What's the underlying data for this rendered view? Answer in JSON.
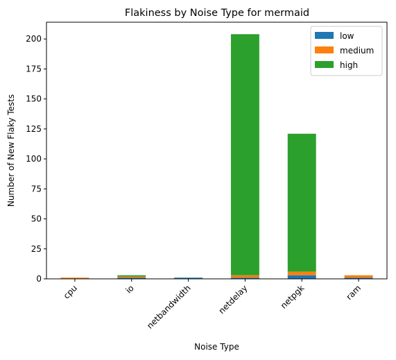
{
  "chart_data": {
    "type": "bar",
    "stacked": true,
    "title": "Flakiness by Noise Type for mermaid",
    "xlabel": "Noise Type",
    "ylabel": "Number of New Flaky Tests",
    "categories": [
      "cpu",
      "io",
      "netbandwidth",
      "netdelay",
      "netpgk",
      "ram"
    ],
    "series": [
      {
        "name": "low",
        "color": "#1f77b4",
        "values": [
          0,
          1,
          1,
          1,
          3,
          1
        ]
      },
      {
        "name": "medium",
        "color": "#ff7f0e",
        "values": [
          1,
          1,
          0,
          2,
          3,
          2
        ]
      },
      {
        "name": "high",
        "color": "#2ca02c",
        "values": [
          0,
          1,
          0,
          201,
          115,
          0
        ]
      }
    ],
    "ylim": [
      0,
      214
    ],
    "yticks": [
      0,
      25,
      50,
      75,
      100,
      125,
      150,
      175,
      200
    ],
    "grid": false,
    "legend_position": "top-right"
  }
}
